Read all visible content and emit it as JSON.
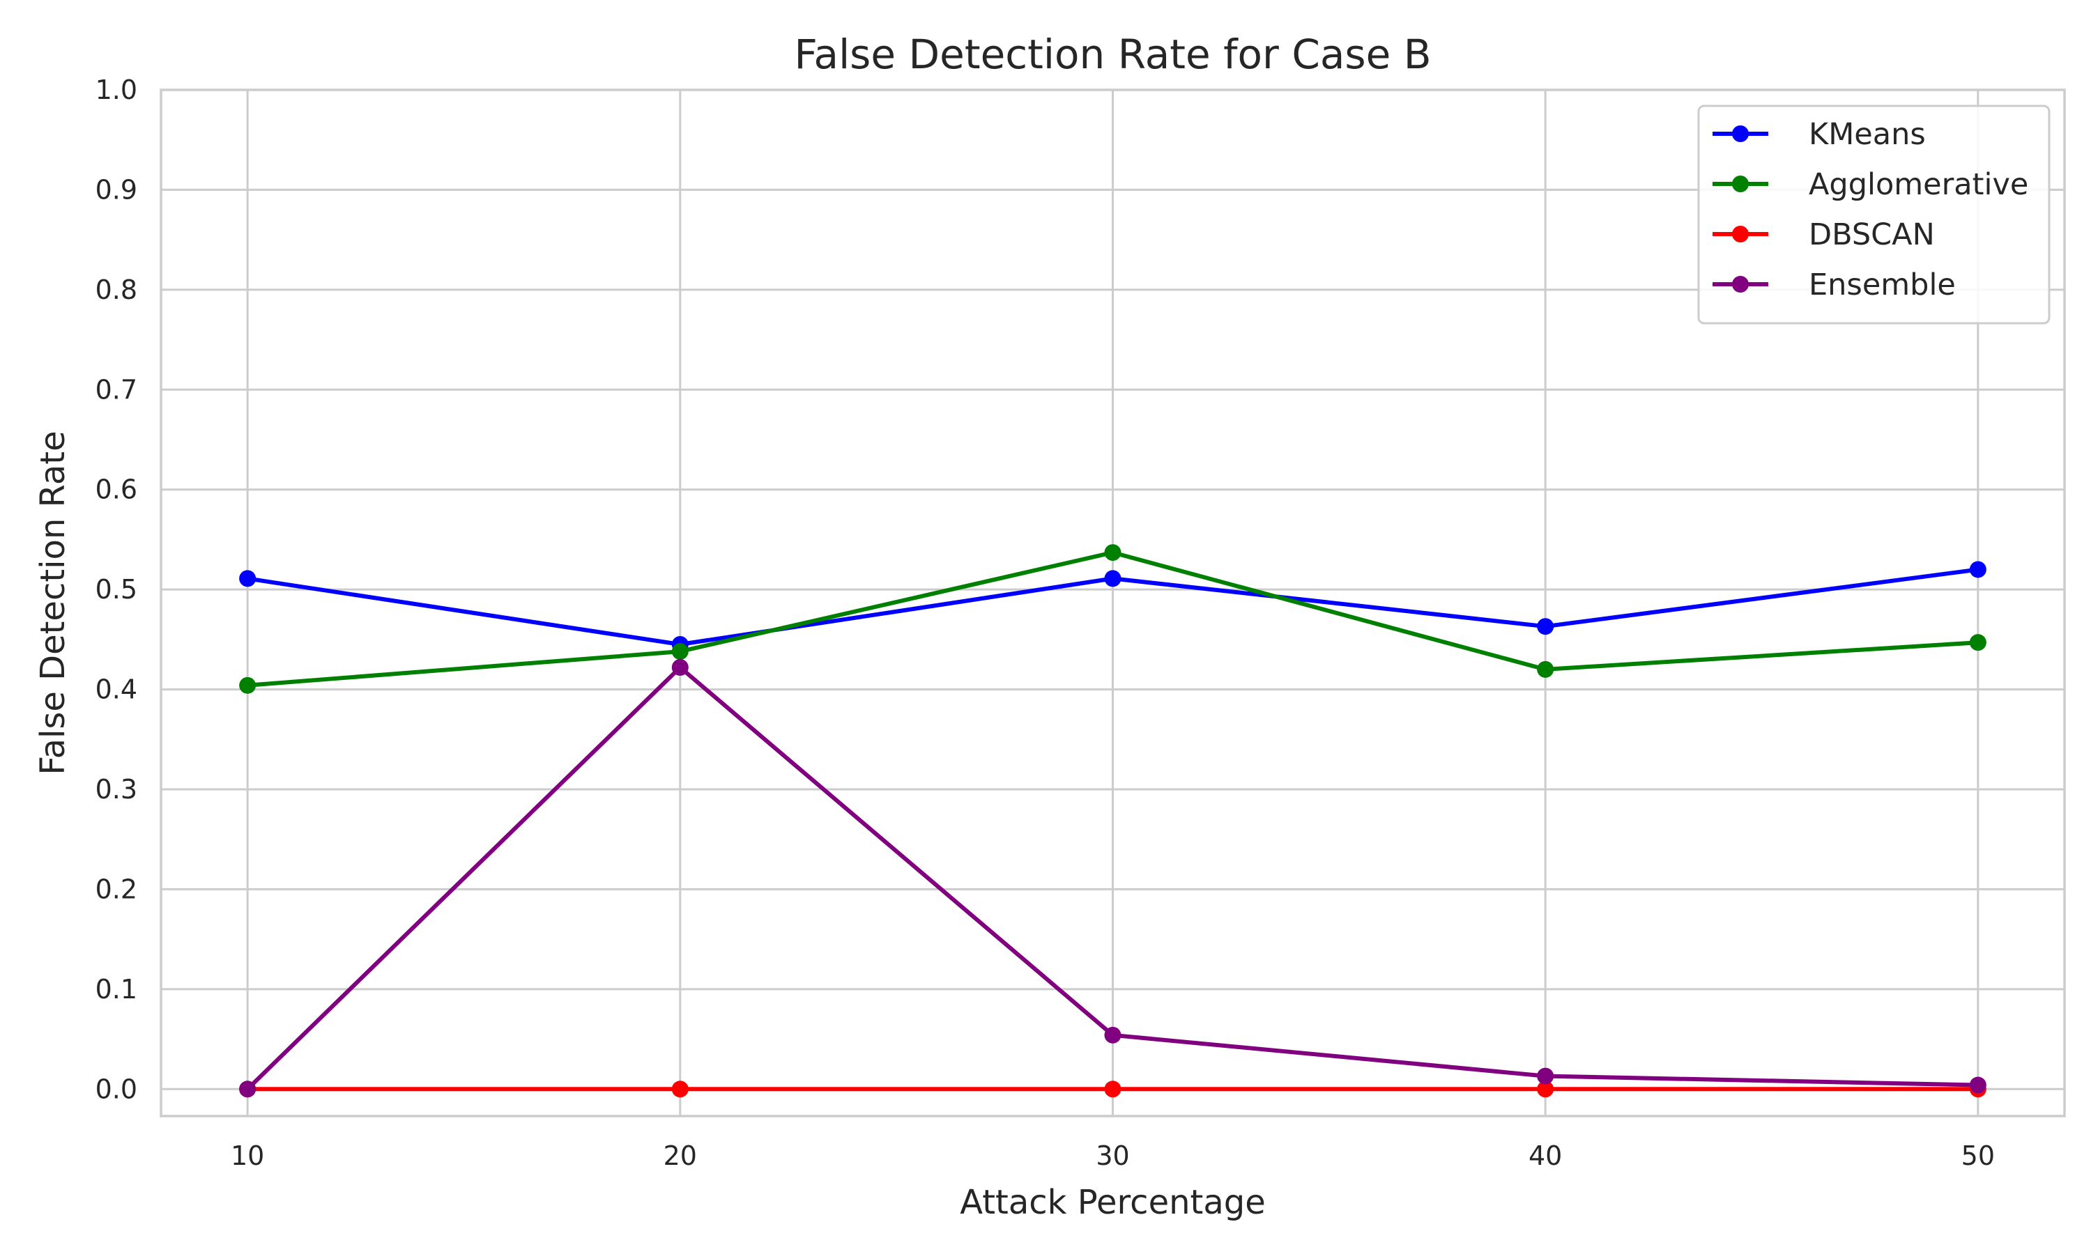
{
  "chart_data": {
    "type": "line",
    "title": "False Detection Rate for Case B",
    "xlabel": "Attack Percentage",
    "ylabel": "False Detection Rate",
    "x": [
      10,
      20,
      30,
      40,
      50
    ],
    "xticks": [
      10,
      20,
      30,
      40,
      50
    ],
    "yticks": [
      "0.0",
      "0.1",
      "0.2",
      "0.3",
      "0.4",
      "0.5",
      "0.6",
      "0.7",
      "0.8",
      "0.9",
      "1.0"
    ],
    "xlim": [
      8,
      52
    ],
    "ylim": [
      -0.027,
      1.0
    ],
    "grid": true,
    "legend_position": "top-right",
    "series": [
      {
        "name": "KMeans",
        "color": "#0000ff",
        "marker": "circle",
        "values": [
          0.511,
          0.445,
          0.511,
          0.463,
          0.52
        ]
      },
      {
        "name": "Agglomerative",
        "color": "#008000",
        "marker": "circle",
        "values": [
          0.404,
          0.438,
          0.537,
          0.42,
          0.447
        ]
      },
      {
        "name": "DBSCAN",
        "color": "#ff0000",
        "marker": "circle",
        "values": [
          0.0,
          0.0,
          0.0,
          0.0,
          0.0
        ]
      },
      {
        "name": "Ensemble",
        "color": "#800080",
        "marker": "circle",
        "values": [
          0.0,
          0.422,
          0.054,
          0.013,
          0.004
        ]
      }
    ]
  }
}
